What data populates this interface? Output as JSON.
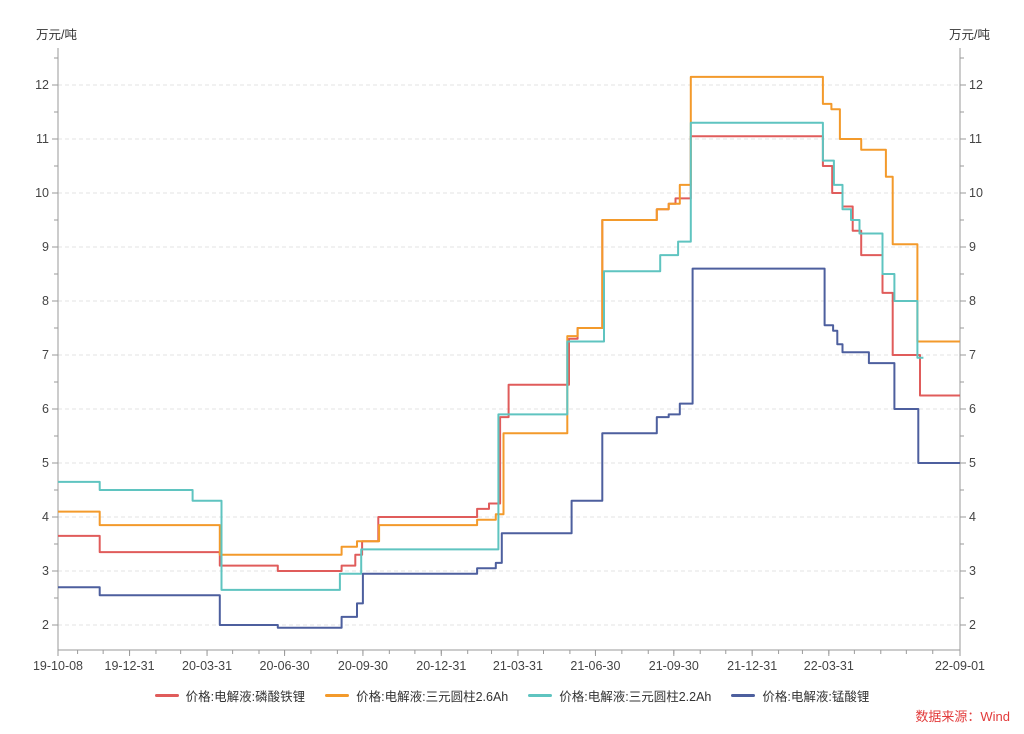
{
  "units": {
    "left": "万元/吨",
    "right": "万元/吨"
  },
  "source_note": "数据来源：Wind",
  "style": {
    "background": "#ffffff",
    "grid_color": "#e3e3e3",
    "axis_color": "#9a9a9a",
    "tick_text_color": "#444444",
    "legend_text_color": "#333333",
    "source_color": "#e23b3b"
  },
  "chart_data": {
    "type": "line",
    "step": true,
    "title": "",
    "ylabel": "万元/吨",
    "ylabel_right": "万元/吨",
    "ylim": [
      1.5,
      12.5
    ],
    "y_ticks": [
      2,
      3,
      4,
      5,
      6,
      7,
      8,
      9,
      10,
      11,
      12
    ],
    "grid": "horizontal-dashed",
    "legend_position": "bottom",
    "x_range": [
      "2019-10-08",
      "2022-09-01"
    ],
    "x_tick_dates": [
      "2019-10-08",
      "2019-12-31",
      "2020-03-31",
      "2020-06-30",
      "2020-09-30",
      "2020-12-31",
      "2021-03-31",
      "2021-06-30",
      "2021-09-30",
      "2021-12-31",
      "2022-03-31",
      "2022-09-01"
    ],
    "x_tick_labels": [
      "19-10-08",
      "19-12-31",
      "20-03-31",
      "20-06-30",
      "20-09-30",
      "20-12-31",
      "21-03-31",
      "21-06-30",
      "21-09-30",
      "21-12-31",
      "22-03-31",
      "22-09-01"
    ],
    "series": [
      {
        "id": "lfp",
        "name": "价格:电解液:磷酸铁锂",
        "color": "#e05c5b",
        "points": [
          [
            "2019-10-08",
            3.65
          ],
          [
            "2019-11-26",
            3.35
          ],
          [
            "2020-04-15",
            3.1
          ],
          [
            "2020-06-22",
            3.0
          ],
          [
            "2020-09-05",
            3.1
          ],
          [
            "2020-09-21",
            3.3
          ],
          [
            "2020-09-29",
            3.55
          ],
          [
            "2020-10-18",
            4.0
          ],
          [
            "2021-02-11",
            4.15
          ],
          [
            "2021-02-25",
            4.25
          ],
          [
            "2021-03-10",
            5.85
          ],
          [
            "2021-03-20",
            6.45
          ],
          [
            "2021-05-30",
            7.3
          ],
          [
            "2021-06-09",
            7.5
          ],
          [
            "2021-07-08",
            9.5
          ],
          [
            "2021-09-10",
            9.7
          ],
          [
            "2021-09-24",
            9.8
          ],
          [
            "2021-10-02",
            9.9
          ],
          [
            "2021-10-20",
            11.05
          ],
          [
            "2022-03-24",
            10.5
          ],
          [
            "2022-04-04",
            10.0
          ],
          [
            "2022-04-16",
            9.75
          ],
          [
            "2022-04-28",
            9.3
          ],
          [
            "2022-05-08",
            8.85
          ],
          [
            "2022-06-02",
            8.15
          ],
          [
            "2022-06-14",
            7.0
          ],
          [
            "2022-07-16",
            6.25
          ],
          [
            "2022-09-01",
            6.25
          ]
        ]
      },
      {
        "id": "ternary-2p6ah",
        "name": "价格:电解液:三元圆柱2.6Ah",
        "color": "#f39a2b",
        "points": [
          [
            "2019-10-08",
            4.1
          ],
          [
            "2019-11-26",
            3.85
          ],
          [
            "2020-04-15",
            3.3
          ],
          [
            "2020-09-05",
            3.45
          ],
          [
            "2020-09-23",
            3.55
          ],
          [
            "2020-10-19",
            3.85
          ],
          [
            "2021-02-11",
            3.95
          ],
          [
            "2021-03-05",
            4.05
          ],
          [
            "2021-03-14",
            5.55
          ],
          [
            "2021-05-28",
            7.35
          ],
          [
            "2021-06-09",
            7.5
          ],
          [
            "2021-07-08",
            9.5
          ],
          [
            "2021-09-10",
            9.7
          ],
          [
            "2021-09-24",
            9.8
          ],
          [
            "2021-10-07",
            10.15
          ],
          [
            "2021-10-20",
            12.15
          ],
          [
            "2022-03-24",
            11.65
          ],
          [
            "2022-04-03",
            11.55
          ],
          [
            "2022-04-13",
            11.0
          ],
          [
            "2022-05-08",
            10.8
          ],
          [
            "2022-06-06",
            10.3
          ],
          [
            "2022-06-14",
            9.05
          ],
          [
            "2022-07-13",
            7.25
          ],
          [
            "2022-09-01",
            7.25
          ]
        ]
      },
      {
        "id": "ternary-2p2ah",
        "name": "价格:电解液:三元圆柱2.2Ah",
        "color": "#5fc4c0",
        "points": [
          [
            "2019-10-08",
            4.65
          ],
          [
            "2019-11-26",
            4.5
          ],
          [
            "2020-03-14",
            4.3
          ],
          [
            "2020-04-17",
            2.65
          ],
          [
            "2020-09-03",
            2.95
          ],
          [
            "2020-09-28",
            3.4
          ],
          [
            "2021-03-08",
            5.9
          ],
          [
            "2021-05-28",
            7.25
          ],
          [
            "2021-07-10",
            8.55
          ],
          [
            "2021-09-14",
            8.85
          ],
          [
            "2021-10-05",
            9.1
          ],
          [
            "2021-10-20",
            11.3
          ],
          [
            "2022-03-24",
            10.6
          ],
          [
            "2022-04-06",
            10.15
          ],
          [
            "2022-04-16",
            9.7
          ],
          [
            "2022-04-26",
            9.5
          ],
          [
            "2022-05-06",
            9.25
          ],
          [
            "2022-06-02",
            8.5
          ],
          [
            "2022-06-16",
            8.0
          ],
          [
            "2022-07-13",
            6.95
          ],
          [
            "2022-07-20",
            6.95
          ]
        ]
      },
      {
        "id": "lmo",
        "name": "价格:电解液:锰酸锂",
        "color": "#4d5f9e",
        "points": [
          [
            "2019-10-08",
            2.7
          ],
          [
            "2019-11-26",
            2.55
          ],
          [
            "2020-04-15",
            2.0
          ],
          [
            "2020-06-22",
            1.95
          ],
          [
            "2020-09-05",
            2.15
          ],
          [
            "2020-09-23",
            2.4
          ],
          [
            "2020-09-30",
            2.95
          ],
          [
            "2021-02-11",
            3.05
          ],
          [
            "2021-03-05",
            3.15
          ],
          [
            "2021-03-12",
            3.7
          ],
          [
            "2021-06-02",
            4.3
          ],
          [
            "2021-07-08",
            5.55
          ],
          [
            "2021-09-10",
            5.85
          ],
          [
            "2021-09-24",
            5.9
          ],
          [
            "2021-10-07",
            6.1
          ],
          [
            "2021-10-22",
            8.6
          ],
          [
            "2022-03-26",
            7.55
          ],
          [
            "2022-04-05",
            7.45
          ],
          [
            "2022-04-10",
            7.2
          ],
          [
            "2022-04-16",
            7.05
          ],
          [
            "2022-05-17",
            6.85
          ],
          [
            "2022-06-16",
            6.0
          ],
          [
            "2022-07-14",
            5.0
          ],
          [
            "2022-09-01",
            5.0
          ]
        ]
      }
    ]
  }
}
